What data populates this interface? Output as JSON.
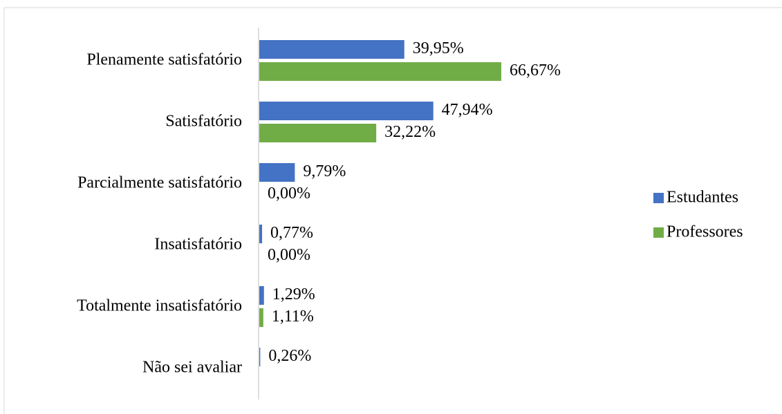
{
  "chart_data": {
    "type": "hbar",
    "categories": [
      "Plenamente satisfatório",
      "Satisfatório",
      "Parcialmente satisfatório",
      "Insatisfatório",
      "Totalmente insatisfatório",
      "Não sei avaliar"
    ],
    "series": [
      {
        "name": "Estudantes",
        "color": "#4472c4",
        "values": [
          39.95,
          47.94,
          9.79,
          0.77,
          1.29,
          0.26
        ],
        "value_labels": [
          "39,95%",
          "47,94%",
          "9,79%",
          "0,77%",
          "1,29%",
          "0,26%"
        ]
      },
      {
        "name": "Professores",
        "color": "#70ad47",
        "values": [
          66.67,
          32.22,
          0,
          0,
          1.11,
          null
        ],
        "value_labels": [
          "66,67%",
          "32,22%",
          "0,00%",
          "0,00%",
          "1,11%",
          null
        ]
      }
    ],
    "legend": "right"
  }
}
